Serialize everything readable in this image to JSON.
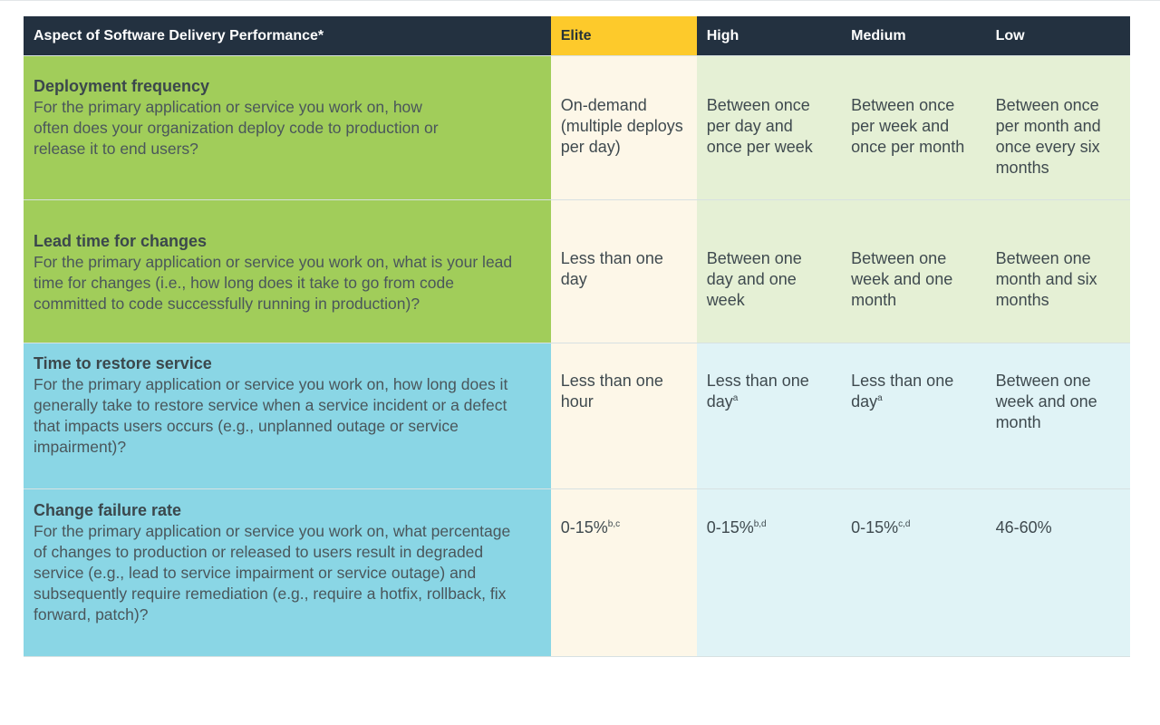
{
  "header": {
    "aspect": "Aspect of Software Delivery Performance*",
    "elite": "Elite",
    "high": "High",
    "medium": "Medium",
    "low": "Low"
  },
  "colors": {
    "header_bg": "#233140",
    "elite_header": "#fdca2b",
    "throughput_aspect": "#a1cd5a",
    "stability_aspect": "#8ad6e5"
  },
  "rows": [
    {
      "title": "Deployment frequency",
      "description": "For the primary application or service you work on, how often does your organization deploy code to production or release it to end users?",
      "elite": "On-demand (multiple deploys per day)",
      "high": "Between once per day and once per week",
      "medium": "Between once per week and once per month",
      "low": "Between once per month and once every six months"
    },
    {
      "title": "Lead time for changes",
      "description": "For the primary application or service you work on, what is your lead time for changes (i.e., how long does it take to go from code committed to code successfully running in production)?",
      "elite": "Less than one day",
      "high": "Between one day and one week",
      "medium": "Between one week and one month",
      "low": "Between one month and six months"
    },
    {
      "title": "Time to restore service",
      "description": "For the primary application or service you work on, how long does it generally take to restore service when a service incident or a defect that impacts users occurs (e.g., unplanned outage or service impairment)?",
      "elite": "Less than one hour",
      "high": "Less than one day",
      "high_note": "a",
      "medium": "Less than one day",
      "medium_note": "a",
      "low": "Between one week and one month"
    },
    {
      "title": "Change failure rate",
      "description": "For the primary application or service you work on, what percentage of changes to production or released to users result in degraded service (e.g., lead to service impairment or service outage) and subsequently require remediation (e.g., require a hotfix, rollback, fix forward, patch)?",
      "elite": "0-15%",
      "elite_note": "b,c",
      "high": "0-15%",
      "high_note": "b,d",
      "medium": "0-15%",
      "medium_note": "c,d",
      "low": "46-60%"
    }
  ]
}
